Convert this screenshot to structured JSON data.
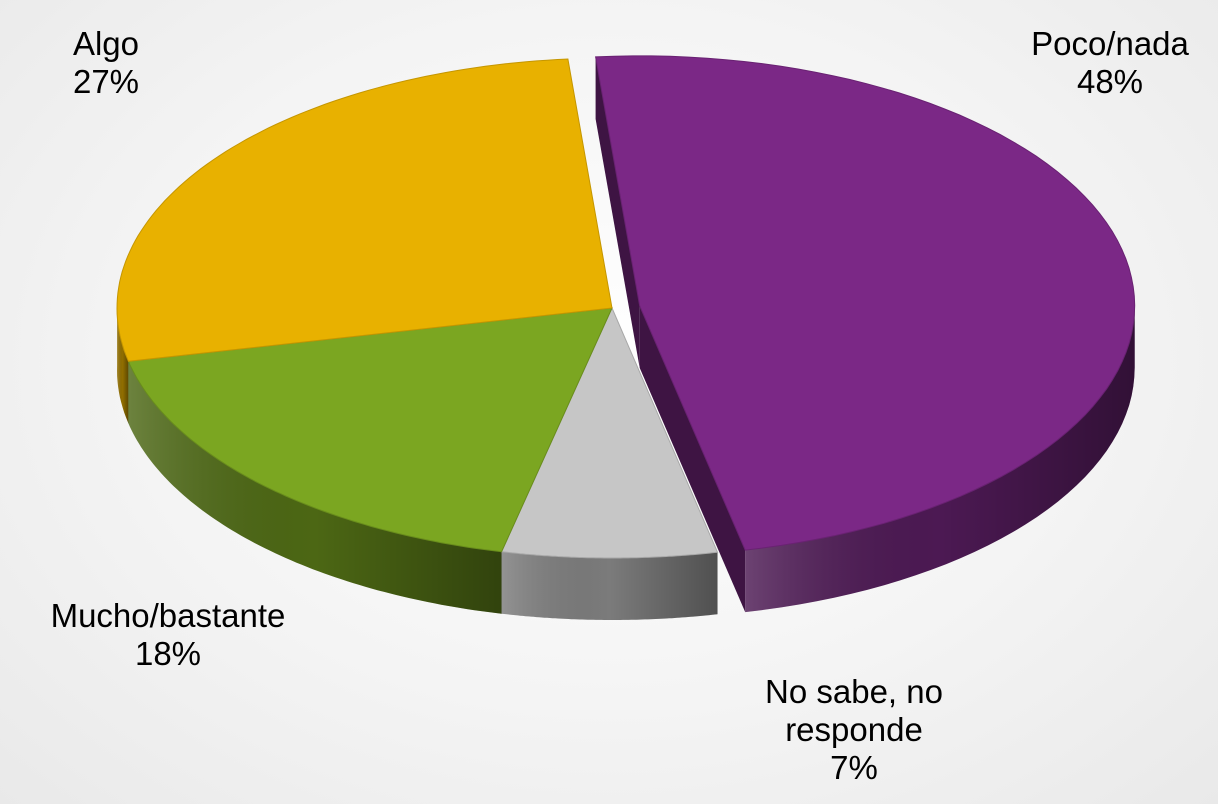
{
  "chart_data": {
    "type": "pie",
    "three_d": true,
    "exploded": true,
    "legend": "none",
    "slices": [
      {
        "label": "Poco/nada",
        "value": 48,
        "value_label": "48%",
        "color": "#7b2886"
      },
      {
        "label": "No sabe, no responde",
        "value": 7,
        "value_label": "7%",
        "color": "#c6c6c6"
      },
      {
        "label": "Mucho/bastante",
        "value": 18,
        "value_label": "18%",
        "color": "#7ba621"
      },
      {
        "label": "Algo",
        "value": 27,
        "value_label": "27%",
        "color": "#e8b100"
      }
    ],
    "label_lines": {
      "Poco/nada": [
        "Poco/nada"
      ],
      "No sabe, no responde": [
        "No sabe, no",
        "responde"
      ],
      "Mucho/bastante": [
        "Mucho/bastante"
      ],
      "Algo": [
        "Algo"
      ]
    }
  }
}
